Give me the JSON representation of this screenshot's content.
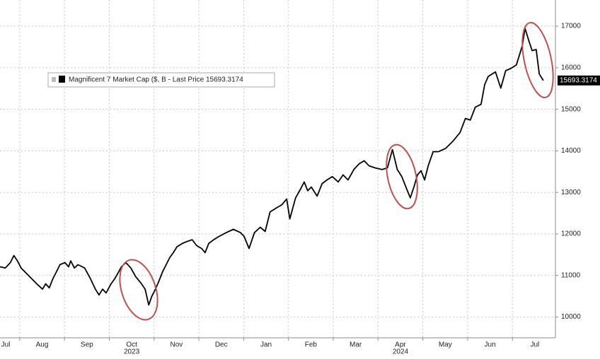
{
  "chart_data": {
    "type": "line",
    "series": [
      {
        "name": "Magnificent 7 Market Cap ($, B - Last Price 15693.3174",
        "color": "#000000",
        "x": [
          0.56,
          0.68,
          0.79,
          0.87,
          0.95,
          1.03,
          1.16,
          1.27,
          1.38,
          1.51,
          1.58,
          1.66,
          1.74,
          1.82,
          1.9,
          2.01,
          2.09,
          2.14,
          2.22,
          2.3,
          2.45,
          2.58,
          2.69,
          2.77,
          2.85,
          2.93,
          3.04,
          3.12,
          3.21,
          3.27,
          3.37,
          3.48,
          3.59,
          3.72,
          3.8,
          3.88,
          3.95,
          4.03,
          4.11,
          4.19,
          4.27,
          4.35,
          4.43,
          4.51,
          4.63,
          4.74,
          4.85,
          4.95,
          5.06,
          5.14,
          5.22,
          5.33,
          5.45,
          5.61,
          5.77,
          5.93,
          6.01,
          6.12,
          6.24,
          6.37,
          6.48,
          6.59,
          6.72,
          6.85,
          6.96,
          7.03,
          7.16,
          7.27,
          7.35,
          7.43,
          7.51,
          7.64,
          7.75,
          7.86,
          7.98,
          8.11,
          8.22,
          8.33,
          8.46,
          8.58,
          8.69,
          8.8,
          8.93,
          9.09,
          9.21,
          9.32,
          9.43,
          9.53,
          9.64,
          9.72,
          9.8,
          9.88,
          9.96,
          10.04,
          10.12,
          10.23,
          10.35,
          10.51,
          10.67,
          10.83,
          10.95,
          11.06,
          11.17,
          11.3,
          11.38,
          11.46,
          11.62,
          11.74,
          11.85,
          11.96,
          12.09,
          12.22,
          12.28,
          12.37,
          12.44,
          12.53,
          12.6,
          12.69
        ],
        "values": [
          11210,
          11180,
          11310,
          11480,
          11350,
          11180,
          11040,
          10920,
          10800,
          10670,
          10800,
          10700,
          10920,
          11090,
          11260,
          11310,
          11210,
          11350,
          11180,
          11260,
          11180,
          10920,
          10670,
          10530,
          10670,
          10580,
          10800,
          10920,
          11090,
          11210,
          11310,
          11180,
          10970,
          10800,
          10670,
          10290,
          10500,
          10670,
          10870,
          11090,
          11260,
          11430,
          11550,
          11690,
          11770,
          11820,
          11860,
          11720,
          11650,
          11550,
          11770,
          11860,
          11940,
          12030,
          12110,
          12030,
          11940,
          11650,
          12030,
          12160,
          12060,
          12530,
          12620,
          12700,
          12840,
          12360,
          12870,
          13080,
          13250,
          13040,
          13130,
          12910,
          13210,
          13300,
          13380,
          13250,
          13420,
          13300,
          13550,
          13690,
          13760,
          13640,
          13590,
          13550,
          13590,
          14030,
          13550,
          13380,
          13080,
          12870,
          13130,
          13420,
          13520,
          13300,
          13640,
          13980,
          13980,
          14060,
          14230,
          14440,
          14780,
          14740,
          15050,
          15120,
          15590,
          15790,
          15900,
          15510,
          15930,
          15980,
          16070,
          16530,
          16950,
          16640,
          16410,
          16440,
          15850,
          15693.3174
        ]
      }
    ],
    "xlim": [
      0.56,
      12.96
    ],
    "ylim": [
      9500,
      17630
    ],
    "xticks": [
      {
        "value": 0,
        "label": "Jul"
      },
      {
        "value": 1,
        "label": "Aug"
      },
      {
        "value": 2,
        "label": "Sep"
      },
      {
        "value": 3,
        "label": "Oct"
      },
      {
        "value": 4,
        "label": "Nov"
      },
      {
        "value": 5,
        "label": "Dec"
      },
      {
        "value": 6,
        "label": "Jan"
      },
      {
        "value": 7,
        "label": "Feb"
      },
      {
        "value": 8,
        "label": "Mar"
      },
      {
        "value": 9,
        "label": "Apr"
      },
      {
        "value": 10,
        "label": "May"
      },
      {
        "value": 11,
        "label": "Jun"
      },
      {
        "value": 12,
        "label": "Jul"
      }
    ],
    "year_labels": [
      {
        "value": 3,
        "label": "2023"
      },
      {
        "value": 9,
        "label": "2024"
      }
    ],
    "yticks": [
      10000,
      11000,
      12000,
      13000,
      14000,
      15000,
      16000,
      17000
    ],
    "grid": true
  }
}
